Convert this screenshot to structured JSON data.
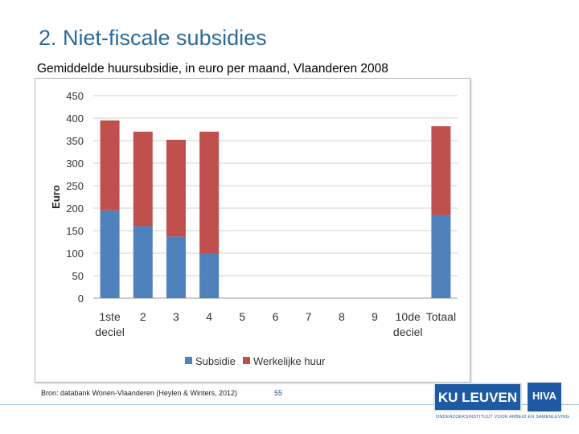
{
  "slide": {
    "title": "2. Niet-fiscale subsidies",
    "subtitle": "Gemiddelde huursubsidie, in euro per maand, Vlaanderen 2008",
    "source": "Bron: databank Wonen-Vlaanderen (Heylen & Winters, 2012)",
    "page_number": "55"
  },
  "logos": {
    "ku_leuven": "KU LEUVEN",
    "hiva": "HIVA",
    "tagline": "ONDERZOEKSINSTITUUT VOOR ARBEID EN SAMENLEVING"
  },
  "colors": {
    "subsidie": "#4f81bd",
    "werkelijke_huur": "#c0504d",
    "title": "#2c6a9a",
    "logo_blue": "#1d5aa3"
  },
  "chart_data": {
    "type": "bar",
    "stacked": true,
    "categories": [
      [
        "1ste",
        "deciel"
      ],
      [
        "2"
      ],
      [
        "3"
      ],
      [
        "4"
      ],
      [
        "5"
      ],
      [
        "6"
      ],
      [
        "7"
      ],
      [
        "8"
      ],
      [
        "9"
      ],
      [
        "10de",
        "deciel"
      ],
      [
        "Totaal"
      ]
    ],
    "series": [
      {
        "name": "Subsidie",
        "values": [
          195,
          160,
          137,
          100,
          null,
          null,
          null,
          null,
          null,
          null,
          185
        ]
      },
      {
        "name": "Werkelijke huur",
        "values": [
          200,
          210,
          215,
          270,
          null,
          null,
          null,
          null,
          null,
          null,
          197
        ]
      }
    ],
    "ylabel": "Euro",
    "ylim": [
      0,
      450
    ],
    "yticks": [
      0,
      50,
      100,
      150,
      200,
      250,
      300,
      350,
      400,
      450
    ],
    "grid": true,
    "legend": "bottom"
  }
}
